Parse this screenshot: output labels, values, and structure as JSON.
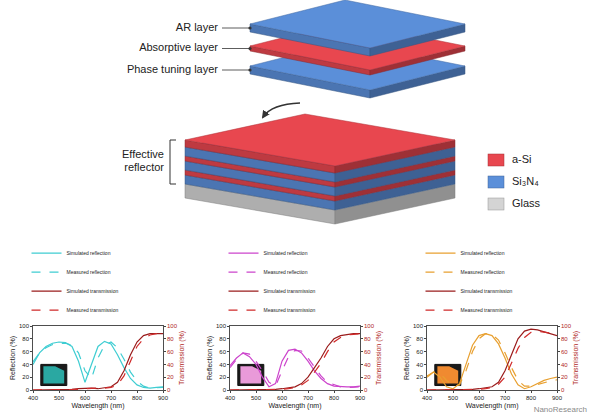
{
  "diagram": {
    "exploded_layers": [
      {
        "label": "AR layer",
        "material": "Si₃N₄"
      },
      {
        "label": "Absorptive layer",
        "material": "a-Si"
      },
      {
        "label": "Phase tuning layer",
        "material": "Si₃N₄"
      }
    ],
    "stack_label": "Effective reflector",
    "stack": [
      "a-Si",
      "Si₃N₄",
      "a-Si",
      "Si₃N₄",
      "a-Si",
      "Si₃N₄",
      "Glass"
    ],
    "materials": [
      {
        "name": "a-Si",
        "color": "#e8474f"
      },
      {
        "name": "Si₃N₄",
        "color": "#5b8fd9"
      },
      {
        "name": "Glass",
        "color": "#d4d4d4"
      }
    ]
  },
  "watermark": "NanoResearch",
  "chart_data": [
    {
      "type": "line",
      "x_label": "Wavelength (nm)",
      "y_label": "Reflection (%)",
      "y2_label": "Transmission (%)",
      "xlim": [
        400,
        900
      ],
      "xticks": [
        400,
        500,
        600,
        700,
        800,
        900
      ],
      "ylim": [
        0,
        100
      ],
      "yticks": [
        0,
        20,
        40,
        60,
        80,
        100
      ],
      "y2lim": [
        0,
        100
      ],
      "y2ticks": [
        0,
        20,
        40,
        60,
        80,
        100
      ],
      "grid": false,
      "legend": "top",
      "x": [
        400,
        425,
        450,
        475,
        500,
        525,
        550,
        575,
        600,
        625,
        650,
        675,
        700,
        725,
        750,
        775,
        800,
        825,
        850,
        875,
        900
      ],
      "series": [
        {
          "name": "Simulated reflection",
          "color": "#3fcdd2",
          "line_style": "solid",
          "values": [
            40,
            58,
            68,
            73,
            75,
            74,
            68,
            45,
            12,
            40,
            68,
            76,
            72,
            55,
            35,
            18,
            8,
            4,
            3,
            4,
            5
          ]
        },
        {
          "name": "Measured reflection",
          "color": "#3fcdd2",
          "line_style": "dash",
          "values": [
            44,
            58,
            66,
            71,
            73,
            73,
            70,
            58,
            30,
            18,
            50,
            70,
            75,
            66,
            48,
            28,
            14,
            6,
            3,
            3,
            4
          ]
        },
        {
          "name": "Simulated transmission",
          "color": "#9a1c1c",
          "line_style": "solid",
          "axis": "y2",
          "values": [
            0,
            0,
            0,
            0,
            0,
            0,
            1,
            2,
            3,
            3,
            2,
            3,
            5,
            12,
            30,
            55,
            75,
            85,
            88,
            88,
            88
          ]
        },
        {
          "name": "Measured transmission",
          "color": "#d02a2a",
          "line_style": "dash",
          "axis": "y2",
          "values": [
            0,
            0,
            0,
            0,
            0,
            0,
            1,
            1,
            2,
            3,
            3,
            3,
            4,
            8,
            22,
            45,
            68,
            80,
            86,
            88,
            89
          ]
        }
      ]
    },
    {
      "type": "line",
      "x_label": "Wavelength (nm)",
      "y_label": "Reflection (%)",
      "y2_label": "Transmission (%)",
      "xlim": [
        400,
        900
      ],
      "xticks": [
        400,
        500,
        600,
        700,
        800,
        900
      ],
      "ylim": [
        0,
        100
      ],
      "yticks": [
        0,
        20,
        40,
        60,
        80,
        100
      ],
      "y2lim": [
        0,
        100
      ],
      "y2ticks": [
        0,
        20,
        40,
        60,
        80,
        100
      ],
      "grid": false,
      "legend": "top",
      "x": [
        400,
        425,
        450,
        475,
        500,
        525,
        550,
        575,
        600,
        625,
        650,
        675,
        700,
        725,
        750,
        775,
        800,
        825,
        850,
        875,
        900
      ],
      "series": [
        {
          "name": "Simulated reflection",
          "color": "#cc44cc",
          "line_style": "solid",
          "values": [
            38,
            50,
            58,
            52,
            40,
            20,
            5,
            10,
            45,
            62,
            64,
            58,
            45,
            30,
            18,
            10,
            6,
            5,
            5,
            5,
            6
          ]
        },
        {
          "name": "Measured reflection",
          "color": "#cc44cc",
          "line_style": "dash",
          "values": [
            35,
            48,
            58,
            56,
            45,
            30,
            12,
            6,
            30,
            52,
            62,
            61,
            50,
            36,
            22,
            12,
            8,
            5,
            4,
            4,
            5
          ]
        },
        {
          "name": "Simulated transmission",
          "color": "#9a1c1c",
          "line_style": "solid",
          "axis": "y2",
          "values": [
            0,
            0,
            0,
            0,
            0,
            0,
            0,
            1,
            2,
            3,
            5,
            10,
            20,
            35,
            50,
            68,
            80,
            85,
            87,
            88,
            88
          ]
        },
        {
          "name": "Measured transmission",
          "color": "#d02a2a",
          "line_style": "dash",
          "axis": "y2",
          "values": [
            0,
            0,
            0,
            0,
            0,
            0,
            0,
            1,
            1,
            2,
            4,
            8,
            15,
            28,
            42,
            60,
            75,
            82,
            86,
            87,
            88
          ]
        }
      ]
    },
    {
      "type": "line",
      "x_label": "Wavelength (nm)",
      "y_label": "Reflection (%)",
      "y2_label": "Transmission (%)",
      "xlim": [
        400,
        900
      ],
      "xticks": [
        400,
        500,
        600,
        700,
        800,
        900
      ],
      "ylim": [
        0,
        100
      ],
      "yticks": [
        0,
        20,
        40,
        60,
        80,
        100
      ],
      "y2lim": [
        0,
        100
      ],
      "y2ticks": [
        0,
        20,
        40,
        60,
        80,
        100
      ],
      "grid": false,
      "legend": "top",
      "x": [
        400,
        425,
        450,
        475,
        500,
        525,
        550,
        575,
        600,
        625,
        650,
        675,
        700,
        725,
        750,
        775,
        800,
        825,
        850,
        875,
        900
      ],
      "series": [
        {
          "name": "Simulated reflection",
          "color": "#e8a030",
          "line_style": "solid",
          "values": [
            20,
            28,
            20,
            5,
            2,
            10,
            40,
            70,
            85,
            88,
            85,
            72,
            50,
            25,
            8,
            2,
            5,
            10,
            15,
            18,
            20
          ]
        },
        {
          "name": "Measured reflection",
          "color": "#e8a030",
          "line_style": "dash",
          "values": [
            22,
            28,
            26,
            15,
            6,
            8,
            30,
            60,
            80,
            88,
            87,
            78,
            58,
            35,
            15,
            6,
            6,
            9,
            12,
            14,
            16
          ]
        },
        {
          "name": "Simulated transmission",
          "color": "#9a1c1c",
          "line_style": "solid",
          "axis": "y2",
          "values": [
            0,
            0,
            0,
            0,
            0,
            0,
            0,
            1,
            2,
            3,
            5,
            12,
            30,
            55,
            80,
            92,
            95,
            94,
            91,
            88,
            85
          ]
        },
        {
          "name": "Measured transmission",
          "color": "#d02a2a",
          "line_style": "dash",
          "axis": "y2",
          "values": [
            0,
            0,
            0,
            0,
            0,
            0,
            0,
            1,
            1,
            2,
            4,
            9,
            20,
            42,
            65,
            82,
            90,
            92,
            90,
            89,
            88
          ]
        }
      ]
    }
  ]
}
